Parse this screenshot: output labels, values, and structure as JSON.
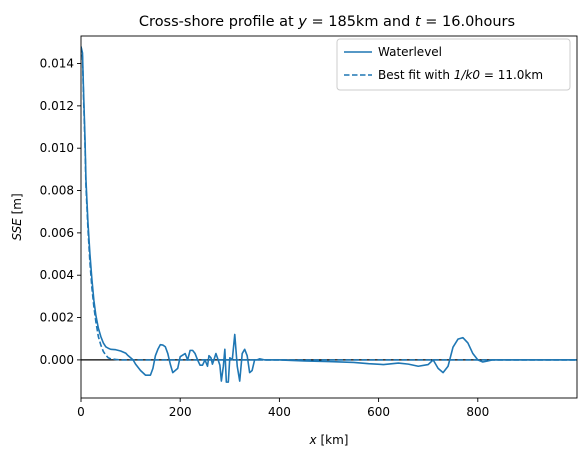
{
  "chart_data": {
    "type": "line",
    "title": "Cross-shore profile at y = 185km and t = 16.0hours",
    "title_parts": {
      "pre": "Cross-shore profile at ",
      "var1": "y",
      "mid1": " = 185km and ",
      "var2": "t",
      "mid2": " = 16.0hours"
    },
    "xlabel": "x [km]",
    "xlabel_parts": {
      "var": "x",
      "unit": " [km]"
    },
    "ylabel": "SSE [m]",
    "ylabel_parts": {
      "var": "SSE",
      "unit": " [m]"
    },
    "xlim": [
      0,
      1000
    ],
    "ylim": [
      -0.0018,
      0.0153
    ],
    "xticks": [
      0,
      200,
      400,
      600,
      800
    ],
    "xtick_labels": [
      "0",
      "200",
      "400",
      "600",
      "800"
    ],
    "yticks": [
      0.0,
      0.002,
      0.004,
      0.006,
      0.008,
      0.01,
      0.012,
      0.014
    ],
    "ytick_labels": [
      "0.000",
      "0.002",
      "0.004",
      "0.006",
      "0.008",
      "0.010",
      "0.012",
      "0.014"
    ],
    "grid": false,
    "legend_position": "top-right",
    "zero_line": true,
    "colors": {
      "series": "#1f77b4",
      "zero_line": "#000000",
      "axes": "#000000"
    },
    "series": [
      {
        "name": "Waterlevel",
        "style": "solid",
        "x": [
          0,
          3,
          5,
          8,
          10,
          14,
          18,
          22,
          26,
          30,
          35,
          40,
          45,
          50,
          55,
          60,
          70,
          80,
          90,
          95,
          100,
          105,
          110,
          120,
          130,
          140,
          145,
          150,
          155,
          160,
          165,
          170,
          175,
          180,
          185,
          190,
          195,
          200,
          210,
          215,
          220,
          225,
          230,
          235,
          240,
          245,
          250,
          255,
          258,
          262,
          265,
          268,
          272,
          275,
          280,
          283,
          287,
          290,
          293,
          297,
          300,
          305,
          310,
          315,
          320,
          325,
          330,
          335,
          340,
          345,
          350,
          355,
          360,
          370,
          400,
          450,
          500,
          550,
          580,
          610,
          640,
          660,
          680,
          700,
          710,
          720,
          730,
          740,
          750,
          760,
          770,
          780,
          790,
          800,
          810,
          820,
          830,
          850,
          900,
          950,
          1000
        ],
        "y": [
          0.0148,
          0.0145,
          0.0128,
          0.0105,
          0.0085,
          0.0065,
          0.005,
          0.0038,
          0.0028,
          0.0021,
          0.0015,
          0.0011,
          0.0008,
          0.00062,
          0.00055,
          0.0005,
          0.00048,
          0.00042,
          0.00032,
          0.0002,
          0.0001,
          0.0,
          -0.0002,
          -0.0005,
          -0.00072,
          -0.00072,
          -0.0004,
          0.0002,
          0.0005,
          0.00072,
          0.0007,
          0.00062,
          0.0003,
          -0.0002,
          -0.0006,
          -0.0005,
          -0.0004,
          0.00015,
          0.0003,
          0.0,
          0.00045,
          0.00045,
          0.0003,
          0.0,
          -0.00025,
          -0.00025,
          0.0,
          -0.0003,
          0.0002,
          0.0001,
          -0.0002,
          0.0,
          0.0003,
          0.0001,
          -0.00025,
          -0.001,
          -0.0003,
          0.0005,
          -0.00105,
          -0.00105,
          0.0001,
          0.0,
          0.0012,
          -0.0003,
          -0.001,
          0.0003,
          0.0005,
          0.0002,
          -0.0006,
          -0.0005,
          0.0,
          0.0,
          5e-05,
          0.0,
          0.0,
          -5e-05,
          -8e-05,
          -0.00012,
          -0.00018,
          -0.00022,
          -0.00015,
          -0.0002,
          -0.0003,
          -0.00022,
          0.0,
          -0.0004,
          -0.0006,
          -0.0003,
          0.0006,
          0.00098,
          0.00105,
          0.0008,
          0.0003,
          0.0,
          -0.0001,
          -5e-05,
          0.0,
          0.0,
          0.0,
          0.0,
          0.0
        ]
      },
      {
        "name": "Best fit with 1/k0 = 11.0km",
        "name_parts": {
          "pre": "Best fit with ",
          "expr": "1/k0",
          "post": " = 11.0km"
        },
        "style": "dashed",
        "x": [
          0,
          3,
          5,
          8,
          10,
          14,
          18,
          22,
          26,
          30,
          35,
          40,
          45,
          50,
          55,
          60,
          70,
          80,
          100,
          150,
          200,
          300,
          400,
          600,
          800,
          1000
        ],
        "y": [
          0.0148,
          0.0143,
          0.0125,
          0.0102,
          0.0082,
          0.0062,
          0.0046,
          0.0034,
          0.0025,
          0.0018,
          0.0011,
          0.0007,
          0.0004,
          0.00022,
          0.0001,
          5e-05,
          2e-05,
          0.0,
          0.0,
          0.0,
          0.0,
          0.0,
          0.0,
          0.0,
          0.0,
          0.0
        ]
      }
    ]
  }
}
